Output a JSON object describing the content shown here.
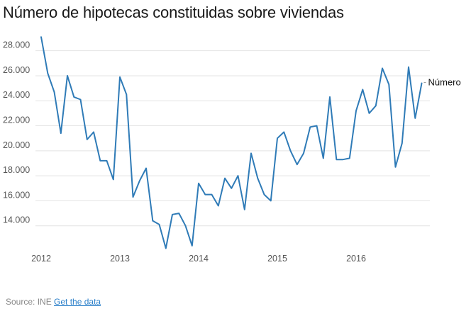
{
  "chart_data": {
    "type": "line",
    "title": "Número de hipotecas constituidas sobre viviendas",
    "xlabel": "",
    "ylabel": "",
    "x_start": "2012-01",
    "x_tick_labels": [
      "2012",
      "2013",
      "2014",
      "2015",
      "2016"
    ],
    "y_tick_values": [
      14000,
      16000,
      18000,
      20000,
      22000,
      24000,
      26000,
      28000
    ],
    "y_tick_labels": [
      "14.000",
      "16.000",
      "18.000",
      "20.000",
      "22.000",
      "24.000",
      "26.000",
      "28.000"
    ],
    "ylim": [
      12000,
      29000
    ],
    "grid": "horizontal",
    "legend_position": "right-end",
    "series": [
      {
        "name": "Número",
        "color": "#2f7bb7",
        "values": [
          29100,
          26200,
          24700,
          21400,
          26000,
          24300,
          24100,
          20900,
          21500,
          19200,
          19200,
          17700,
          25900,
          24500,
          16300,
          17600,
          18600,
          14400,
          14100,
          12200,
          14900,
          15000,
          14000,
          12400,
          17400,
          16500,
          16500,
          15600,
          17800,
          17000,
          18000,
          15300,
          19800,
          17800,
          16500,
          16000,
          21000,
          21500,
          20000,
          18900,
          19800,
          21900,
          22000,
          19400,
          24300,
          19300,
          19300,
          19400,
          23200,
          24900,
          23000,
          23600,
          26600,
          25300,
          18700,
          20600,
          26700,
          22600,
          25400
        ]
      }
    ]
  },
  "footer": {
    "source_label": "Source: INE",
    "link_label": "Get the data"
  }
}
